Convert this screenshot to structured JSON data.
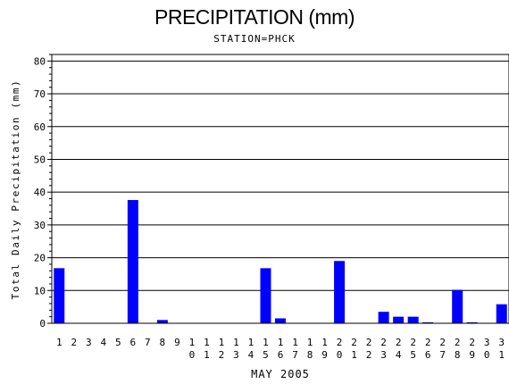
{
  "title": "PRECIPITATION (mm)",
  "subtitle": "STATION=PHCK",
  "chart_data": {
    "type": "bar",
    "title": "PRECIPITATION (mm)",
    "subtitle": "STATION=PHCK",
    "xlabel": "MAY 2005",
    "ylabel": "Total Daily Precipitation (mm)",
    "ylim": [
      0,
      82
    ],
    "yticks": [
      0,
      10,
      20,
      30,
      40,
      50,
      60,
      70,
      80
    ],
    "grid": true,
    "bar_color": "#0000ff",
    "categories": [
      "1",
      "2",
      "3",
      "4",
      "5",
      "6",
      "7",
      "8",
      "9",
      "10",
      "11",
      "12",
      "13",
      "14",
      "15",
      "16",
      "17",
      "18",
      "19",
      "20",
      "21",
      "22",
      "23",
      "24",
      "25",
      "26",
      "27",
      "28",
      "29",
      "30",
      "31"
    ],
    "values": [
      16.8,
      0,
      0,
      0,
      0,
      37.6,
      0,
      1.0,
      0,
      0,
      0,
      0,
      0,
      0,
      16.8,
      1.5,
      0,
      0,
      0,
      19.0,
      0,
      0,
      3.5,
      2.0,
      2.0,
      0.3,
      0,
      10.2,
      0.3,
      0,
      5.8
    ]
  }
}
